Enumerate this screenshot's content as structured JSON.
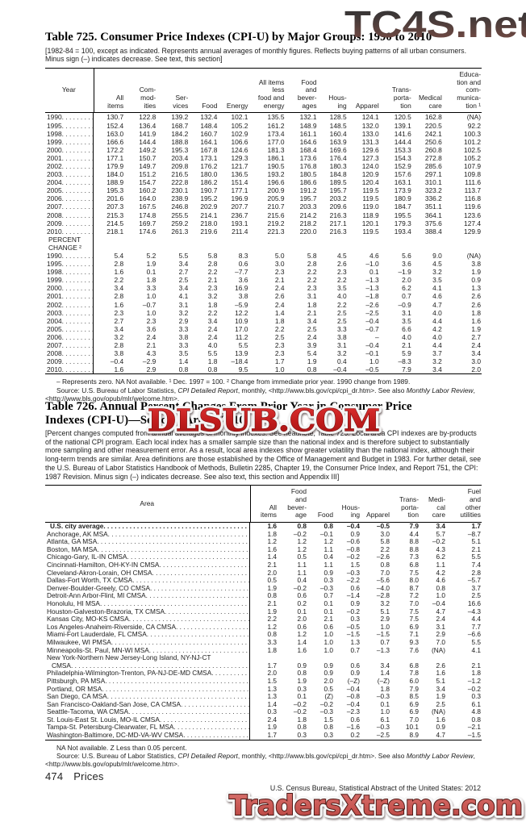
{
  "watermarks": {
    "top": "TC4S.net",
    "middle": "DLSUB.COM",
    "bottom": "TradersXtreme.com"
  },
  "source_parts": {
    "pre": "Source: U.S. Bureau of Labor Statistics, ",
    "italic1": "CPI Detailed Report",
    "mid": ", monthly, <http://www.bls.gov/cpi/cpi_dr.htm>. See also ",
    "italic2": "Monthly Labor Review",
    "post": ", <http://www.bls.gov/opub/mlr/welcome.htm>."
  },
  "table725": {
    "title": "Table 725. Consumer Price Indexes (CPI-U) by Major Groups: 1990 to 2010",
    "headnote": "[1982-84 = 100, except as indicated. Represents annual averages of monthly figures. Reflects buying patterns of all urban consumers. Minus sign (–) indicates decrease. See text, this section]",
    "columns": [
      "Year",
      "All\nitems",
      "Com-\nmod-\nities",
      "Ser-\nvices",
      "Food",
      "Energy",
      "All items\nless\nfood and\nenergy",
      "Food\nand\nbever-\nages",
      "Hous-\ning",
      "Apparel",
      "Trans-\nporta-\ntion",
      "Medical\ncare",
      "Educa-\ntion and\ncom-\nmunica-\ntion ¹"
    ],
    "section_label": "PERCENT\nCHANGE ²",
    "index_rows": [
      {
        "label": "1990",
        "values": [
          "130.7",
          "122.8",
          "139.2",
          "132.4",
          "102.1",
          "135.5",
          "132.1",
          "128.5",
          "124.1",
          "120.5",
          "162.8",
          "(NA)"
        ]
      },
      {
        "label": "1995",
        "values": [
          "152.4",
          "136.4",
          "168.7",
          "148.4",
          "105.2",
          "161.2",
          "148.9",
          "148.5",
          "132.0",
          "139.1",
          "220.5",
          "92.2"
        ]
      },
      {
        "label": "1998",
        "values": [
          "163.0",
          "141.9",
          "184.2",
          "160.7",
          "102.9",
          "173.4",
          "161.1",
          "160.4",
          "133.0",
          "141.6",
          "242.1",
          "100.3"
        ]
      },
      {
        "label": "1999",
        "values": [
          "166.6",
          "144.4",
          "188.8",
          "164.1",
          "106.6",
          "177.0",
          "164.6",
          "163.9",
          "131.3",
          "144.4",
          "250.6",
          "101.2"
        ]
      },
      {
        "label": "2000",
        "values": [
          "172.2",
          "149.2",
          "195.3",
          "167.8",
          "124.6",
          "181.3",
          "168.4",
          "169.6",
          "129.6",
          "153.3",
          "260.8",
          "102.5"
        ]
      },
      {
        "label": "2001",
        "values": [
          "177.1",
          "150.7",
          "203.4",
          "173.1",
          "129.3",
          "186.1",
          "173.6",
          "176.4",
          "127.3",
          "154.3",
          "272.8",
          "105.2"
        ]
      },
      {
        "label": "2002",
        "values": [
          "179.9",
          "149.7",
          "209.8",
          "176.2",
          "121.7",
          "190.5",
          "176.8",
          "180.3",
          "124.0",
          "152.9",
          "285.6",
          "107.9"
        ]
      },
      {
        "label": "2003",
        "values": [
          "184.0",
          "151.2",
          "216.5",
          "180.0",
          "136.5",
          "193.2",
          "180.5",
          "184.8",
          "120.9",
          "157.6",
          "297.1",
          "109.8"
        ]
      },
      {
        "label": "2004",
        "values": [
          "188.9",
          "154.7",
          "222.8",
          "186.2",
          "151.4",
          "196.6",
          "186.6",
          "189.5",
          "120.4",
          "163.1",
          "310.1",
          "111.6"
        ]
      },
      {
        "label": "2005",
        "values": [
          "195.3",
          "160.2",
          "230.1",
          "190.7",
          "177.1",
          "200.9",
          "191.2",
          "195.7",
          "119.5",
          "173.9",
          "323.2",
          "113.7"
        ]
      },
      {
        "label": "2006",
        "values": [
          "201.6",
          "164.0",
          "238.9",
          "195.2",
          "196.9",
          "205.9",
          "195.7",
          "203.2",
          "119.5",
          "180.9",
          "336.2",
          "116.8"
        ]
      },
      {
        "label": "2007",
        "values": [
          "207.3",
          "167.5",
          "246.8",
          "202.9",
          "207.7",
          "210.7",
          "203.3",
          "209.6",
          "119.0",
          "184.7",
          "351.1",
          "119.6"
        ]
      },
      {
        "label": "2008",
        "values": [
          "215.3",
          "174.8",
          "255.5",
          "214.1",
          "236.7",
          "215.6",
          "214.2",
          "216.3",
          "118.9",
          "195.5",
          "364.1",
          "123.6"
        ]
      },
      {
        "label": "2009",
        "values": [
          "214.5",
          "169.7",
          "259.2",
          "218.0",
          "193.1",
          "219.2",
          "218.2",
          "217.1",
          "120.1",
          "179.3",
          "375.6",
          "127.4"
        ]
      },
      {
        "label": "2010",
        "values": [
          "218.1",
          "174.6",
          "261.3",
          "219.6",
          "211.4",
          "221.3",
          "220.0",
          "216.3",
          "119.5",
          "193.4",
          "388.4",
          "129.9"
        ]
      }
    ],
    "percent_rows": [
      {
        "label": "1990",
        "values": [
          "5.4",
          "5.2",
          "5.5",
          "5.8",
          "8.3",
          "5.0",
          "5.8",
          "4.5",
          "4.6",
          "5.6",
          "9.0",
          "(NA)"
        ]
      },
      {
        "label": "1995",
        "values": [
          "2.8",
          "1.9",
          "3.4",
          "2.8",
          "0.6",
          "3.0",
          "2.8",
          "2.6",
          "–1.0",
          "3.6",
          "4.5",
          "3.8"
        ]
      },
      {
        "label": "1998",
        "values": [
          "1.6",
          "0.1",
          "2.7",
          "2.2",
          "–7.7",
          "2.3",
          "2.2",
          "2.3",
          "0.1",
          "–1.9",
          "3.2",
          "1.9"
        ]
      },
      {
        "label": "1999",
        "values": [
          "2.2",
          "1.8",
          "2.5",
          "2.1",
          "3.6",
          "2.1",
          "2.2",
          "2.2",
          "–1.3",
          "2.0",
          "3.5",
          "0.9"
        ]
      },
      {
        "label": "2000",
        "values": [
          "3.4",
          "3.3",
          "3.4",
          "2.3",
          "16.9",
          "2.4",
          "2.3",
          "3.5",
          "–1.3",
          "6.2",
          "4.1",
          "1.3"
        ]
      },
      {
        "label": "2001",
        "values": [
          "2.8",
          "1.0",
          "4.1",
          "3.2",
          "3.8",
          "2.6",
          "3.1",
          "4.0",
          "–1.8",
          "0.7",
          "4.6",
          "2.6"
        ]
      },
      {
        "label": "2002",
        "values": [
          "1.6",
          "–0.7",
          "3.1",
          "1.8",
          "–5.9",
          "2.4",
          "1.8",
          "2.2",
          "–2.6",
          "–0.9",
          "4.7",
          "2.6"
        ]
      },
      {
        "label": "2003",
        "values": [
          "2.3",
          "1.0",
          "3.2",
          "2.2",
          "12.2",
          "1.4",
          "2.1",
          "2.5",
          "–2.5",
          "3.1",
          "4.0",
          "1.8"
        ]
      },
      {
        "label": "2004",
        "values": [
          "2.7",
          "2.3",
          "2.9",
          "3.4",
          "10.9",
          "1.8",
          "3.4",
          "2.5",
          "–0.4",
          "3.5",
          "4.4",
          "1.6"
        ]
      },
      {
        "label": "2005",
        "values": [
          "3.4",
          "3.6",
          "3.3",
          "2.4",
          "17.0",
          "2.2",
          "2.5",
          "3.3",
          "–0.7",
          "6.6",
          "4.2",
          "1.9"
        ]
      },
      {
        "label": "2006",
        "values": [
          "3.2",
          "2.4",
          "3.8",
          "2.4",
          "11.2",
          "2.5",
          "2.4",
          "3.8",
          "–",
          "4.0",
          "4.0",
          "2.7"
        ]
      },
      {
        "label": "2007",
        "values": [
          "2.8",
          "2.1",
          "3.3",
          "4.0",
          "5.5",
          "2.3",
          "3.9",
          "3.1",
          "–0.4",
          "2.1",
          "4.4",
          "2.4"
        ]
      },
      {
        "label": "2008",
        "values": [
          "3.8",
          "4.3",
          "3.5",
          "5.5",
          "13.9",
          "2.3",
          "5.4",
          "3.2",
          "–0.1",
          "5.9",
          "3.7",
          "3.4"
        ]
      },
      {
        "label": "2009",
        "values": [
          "–0.4",
          "–2.9",
          "1.4",
          "1.8",
          "–18.4",
          "1.7",
          "1.9",
          "0.4",
          "1.0",
          "–8.3",
          "3.2",
          "3.0"
        ]
      },
      {
        "label": "2010",
        "values": [
          "1.6",
          "2.9",
          "0.8",
          "0.8",
          "9.5",
          "1.0",
          "0.8",
          "–0.4",
          "–0.5",
          "7.9",
          "3.4",
          "2.0"
        ]
      }
    ],
    "footnote": "– Represents zero. NA Not available. ¹ Dec. 1997 = 100. ² Change from immediate prior year. 1990 change from 1989."
  },
  "table726": {
    "title_line1": "Table 726. Annual Percent Changes From Prior Year in Consumer Price",
    "title_line2": "Indexes (CPI-U)—Selected Areas: 2010",
    "headnote": "[Percent changes computed from annual averages of monthly indexes. See headnote, Table 725. Local area CPI indexes are by-products of the national CPI program. Each local index has a smaller sample size than the national index and is therefore subject to substantially more sampling and other measurement error. As a result, local area indexes show greater volatility than the national index, although their long-term trends are similar. Area definitions are those established by the Office of Management and Budget in 1983. For further detail, see the U.S. Bureau of Labor Statistics Handbook of Methods, Bulletin 2285, Chapter 19, the Consumer Price Index, and Report 751, the CPI: 1987 Revision. Minus sign (–) indicates decrease. See also text, this section and Appendix III]",
    "columns": [
      "Area",
      "All\nitems",
      "Food\nand\nbever-\nage",
      "Food",
      "Hous-\ning",
      "Apparel",
      "Trans-\nporta-\ntion",
      "Medi-\ncal\ncare",
      "Fuel\nand\nother\nutilities"
    ],
    "rows": [
      {
        "label": "U.S. city average",
        "bold": true,
        "values": [
          "1.6",
          "0.8",
          "0.8",
          "–0.4",
          "–0.5",
          "7.9",
          "3.4",
          "1.7"
        ]
      },
      {
        "label": "Anchorage, AK MSA",
        "values": [
          "1.8",
          "–0.2",
          "–0.1",
          "0.9",
          "3.0",
          "4.4",
          "5.7",
          "–8.7"
        ]
      },
      {
        "label": "Atlanta, GA MSA",
        "values": [
          "1.2",
          "1.2",
          "1.2",
          "–0.6",
          "5.8",
          "8.8",
          "–0.2",
          "5.1"
        ]
      },
      {
        "label": "Boston, MA MSA",
        "values": [
          "1.6",
          "1.2",
          "1.1",
          "–0.8",
          "2.2",
          "8.8",
          "4.3",
          "2.1"
        ]
      },
      {
        "label": "Chicago-Gary, IL-IN CMSA",
        "values": [
          "1.4",
          "0.5",
          "0.4",
          "–0.2",
          "–2.6",
          "7.3",
          "6.2",
          "5.5"
        ]
      },
      {
        "label": "Cincinnati-Hamilton, OH-KY-IN CMSA",
        "values": [
          "2.1",
          "1.1",
          "1.1",
          "1.5",
          "0.8",
          "6.8",
          "1.1",
          "7.4"
        ]
      },
      {
        "label": "Cleveland-Akron-Lorain, OH CMSA",
        "values": [
          "2.0",
          "1.1",
          "0.9",
          "–0.3",
          "7.0",
          "7.5",
          "4.2",
          "2.8"
        ]
      },
      {
        "label": "Dallas-Fort Worth, TX CMSA",
        "values": [
          "0.5",
          "0.4",
          "0.3",
          "–2.2",
          "–5.6",
          "8.0",
          "4.6",
          "–5.7"
        ]
      },
      {
        "label": "Denver-Boulder-Greely, CO CMSA",
        "values": [
          "1.9",
          "–0.2",
          "–0.3",
          "0.6",
          "–4.0",
          "8.7",
          "0.8",
          "3.7"
        ]
      },
      {
        "label": "Detroit-Ann Arbor-Flint, MI CMSA",
        "values": [
          "0.8",
          "0.6",
          "0.7",
          "–1.4",
          "–2.8",
          "7.2",
          "1.0",
          "2.5"
        ]
      },
      {
        "label": "Honolulu, HI MSA",
        "values": [
          "2.1",
          "0.2",
          "0.1",
          "0.9",
          "3.2",
          "7.0",
          "–0.4",
          "16.6"
        ]
      },
      {
        "label": "Houston-Galveston-Brazoria, TX CMSA",
        "values": [
          "1.9",
          "0.1",
          "0.1",
          "–0.2",
          "5.1",
          "7.5",
          "4.7",
          "–4.3"
        ]
      },
      {
        "label": "Kansas City, MO-KS CMSA",
        "values": [
          "2.2",
          "2.0",
          "2.1",
          "0.3",
          "2.9",
          "7.5",
          "2.4",
          "4.4"
        ]
      },
      {
        "label": "Los Angeles-Anaheim-Riverside, CA CMSA",
        "values": [
          "1.2",
          "0.6",
          "0.6",
          "–0.5",
          "1.0",
          "6.9",
          "3.1",
          "7.7"
        ]
      },
      {
        "label": "Miami-Fort Lauderdale, FL CMSA",
        "values": [
          "0.8",
          "1.2",
          "1.0",
          "–1.5",
          "–1.5",
          "7.1",
          "2.9",
          "–6.6"
        ]
      },
      {
        "label": "Milwaukee, WI PMSA",
        "values": [
          "3.3",
          "1.4",
          "1.0",
          "1.3",
          "0.7",
          "9.3",
          "7.0",
          "5.5"
        ]
      },
      {
        "label": "Minneapolis-St. Paul, MN-WI MSA",
        "values": [
          "1.8",
          "1.6",
          "1.0",
          "0.7",
          "–1.3",
          "7.6",
          "(NA)",
          "4.1"
        ]
      },
      {
        "label": "New York-Northern New Jersey-Long Island, NY-NJ-CT",
        "noleader": true,
        "values": []
      },
      {
        "label": "CMSA",
        "indent": true,
        "values": [
          "1.7",
          "0.9",
          "0.9",
          "0.6",
          "3.4",
          "6.8",
          "2.6",
          "2.1"
        ]
      },
      {
        "label": "Philadelphia-Wilmington-Trenton, PA-NJ-DE-MD CMSA",
        "values": [
          "2.0",
          "0.8",
          "0.9",
          "0.9",
          "1.4",
          "7.8",
          "1.6",
          "1.8"
        ]
      },
      {
        "label": "Pittsburgh, PA MSA",
        "values": [
          "1.5",
          "1.9",
          "2.0",
          "(–Z)",
          "(–Z)",
          "6.0",
          "5.1",
          "–1.2"
        ]
      },
      {
        "label": "Portland, OR MSA",
        "values": [
          "1.3",
          "0.3",
          "0.5",
          "–0.4",
          "1.8",
          "7.9",
          "3.4",
          "–0.2"
        ]
      },
      {
        "label": "San Diego, CA MSA",
        "values": [
          "1.3",
          "0.1",
          "(Z)",
          "–0.8",
          "–0.3",
          "8.5",
          "1.9",
          "0.3"
        ]
      },
      {
        "label": "San Francisco-Oakland-San Jose, CA CMSA",
        "values": [
          "1.4",
          "–0.2",
          "–0.2",
          "–0.4",
          "0.1",
          "6.9",
          "2.5",
          "6.1"
        ]
      },
      {
        "label": "Seattle-Tacoma, WA CMSA",
        "values": [
          "0.3",
          "–0.2",
          "–0.3",
          "–2.3",
          "1.0",
          "6.9",
          "(NA)",
          "4.8"
        ]
      },
      {
        "label": "St. Louis-East St. Louis, MO-IL CMSA",
        "values": [
          "2.4",
          "1.8",
          "1.5",
          "0.6",
          "6.1",
          "7.0",
          "1.6",
          "0.8"
        ]
      },
      {
        "label": "Tampa-St. Petersburg-Clearwater, FL MSA",
        "values": [
          "1.9",
          "0.8",
          "0.8",
          "–1.6",
          "–0.3",
          "10.1",
          "0.9",
          "–2.1"
        ]
      },
      {
        "label": "Washington-Baltimore, DC-MD-VA-WV CMSA",
        "values": [
          "1.7",
          "0.3",
          "0.3",
          "0.2",
          "–2.5",
          "8.9",
          "4.7",
          "–1.5"
        ]
      }
    ],
    "footnote": "NA Not available. Z Less than 0.05 percent."
  },
  "footer": {
    "page_number": "474",
    "section": "Prices",
    "credit": "U.S. Census Bureau, Statistical Abstract of the United States: 2012"
  }
}
